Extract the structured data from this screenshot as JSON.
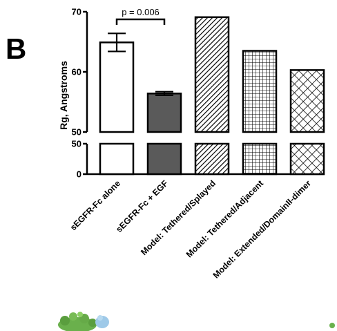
{
  "panel_label": "B",
  "chart_data": {
    "type": "bar",
    "ylabel": "Rg, Angstroms",
    "axis_break": {
      "lower": [
        0,
        50
      ],
      "upper": [
        50,
        70
      ]
    },
    "yticks_lower": [
      0,
      50
    ],
    "yticks_upper": [
      50,
      60,
      70
    ],
    "categories": [
      "sEGFR-Fc alone",
      "sEGFR-Fc + EGF",
      "Model: Tethered/Splayed",
      "Model: Tethered/Adjacent",
      "Model: Extended/DomainII-dimer"
    ],
    "values": [
      64.9,
      56.4,
      69.1,
      63.5,
      60.3
    ],
    "errors": [
      1.5,
      0.3,
      null,
      null,
      null
    ],
    "fills": [
      "white",
      "dark-gray",
      "diagonal-hatch",
      "grid-hatch",
      "crosshatch"
    ],
    "significance": {
      "between": [
        0,
        1
      ],
      "label": "p = 0.006"
    }
  }
}
